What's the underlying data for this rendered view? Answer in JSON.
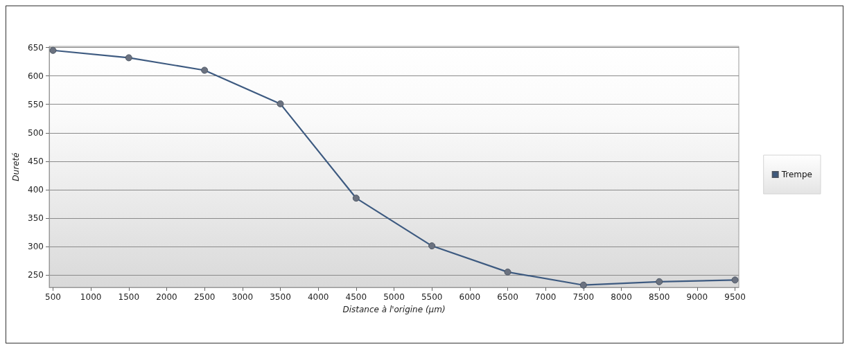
{
  "chart_data": {
    "type": "line",
    "xlabel": "Distance à l'origine (µm)",
    "ylabel": "Dureté",
    "x": [
      500,
      1500,
      2500,
      3500,
      4500,
      5500,
      6500,
      7500,
      8500,
      9500
    ],
    "series": [
      {
        "name": "Trempe",
        "color": "#3d5a80",
        "values": [
          645,
          632,
          610,
          551,
          385,
          301,
          255,
          232,
          238,
          241
        ]
      }
    ],
    "xlim": [
      450,
      9550
    ],
    "xticks": [
      500,
      1000,
      1500,
      2000,
      2500,
      3000,
      3500,
      4000,
      4500,
      5000,
      5500,
      6000,
      6500,
      7000,
      7500,
      8000,
      8500,
      9000,
      9500
    ],
    "ylim": [
      228,
      652
    ],
    "yticks": [
      250,
      300,
      350,
      400,
      450,
      500,
      550,
      600,
      650
    ],
    "grid": "y",
    "legend": "right",
    "marker": "circle",
    "line_style": "solid"
  }
}
